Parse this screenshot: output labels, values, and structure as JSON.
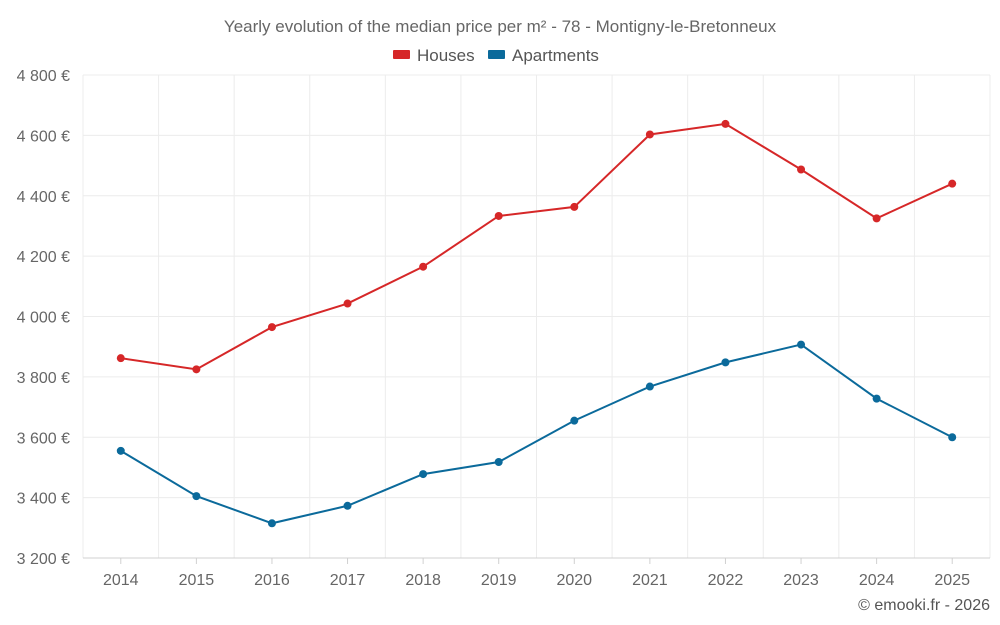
{
  "chart_data": {
    "type": "line",
    "title": "Yearly evolution of the median price per m² - 78 - Montigny-le-Bretonneux",
    "categories": [
      "2014",
      "2015",
      "2016",
      "2017",
      "2018",
      "2019",
      "2020",
      "2021",
      "2022",
      "2023",
      "2024",
      "2025"
    ],
    "series": [
      {
        "name": "Houses",
        "color": "#d62728",
        "values": [
          3862,
          3825,
          3965,
          4043,
          4165,
          4333,
          4363,
          4603,
          4638,
          4487,
          4325,
          4440
        ]
      },
      {
        "name": "Apartments",
        "color": "#0b6a9b",
        "values": [
          3555,
          3405,
          3315,
          3373,
          3478,
          3518,
          3655,
          3768,
          3848,
          3907,
          3728,
          3600
        ]
      }
    ],
    "ylim": [
      3200,
      4800
    ],
    "yticks": [
      3200,
      3400,
      3600,
      3800,
      4000,
      4200,
      4400,
      4600,
      4800
    ],
    "ytick_labels": [
      "3 200 €",
      "3 400 €",
      "3 600 €",
      "3 800 €",
      "4 000 €",
      "4 200 €",
      "4 400 €",
      "4 600 €",
      "4 800 €"
    ],
    "xlabel": "",
    "ylabel": "",
    "grid": true,
    "legend_position": "top-center"
  },
  "credit": "© emooki.fr - 2026"
}
